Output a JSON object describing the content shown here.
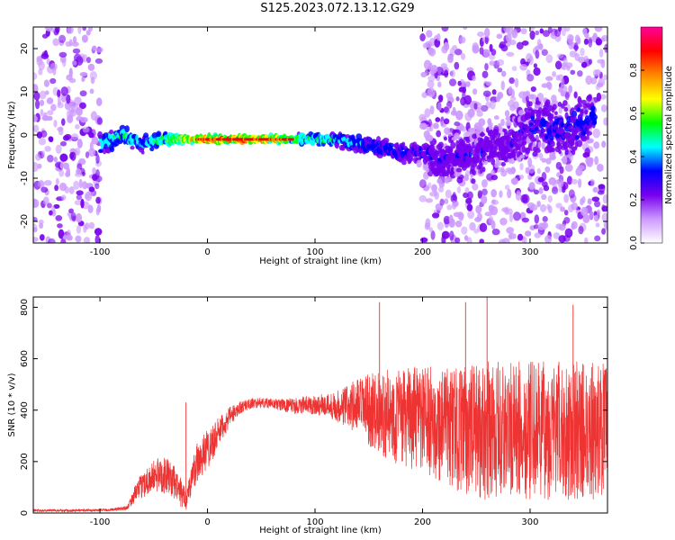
{
  "title": "S125.2023.072.13.12.G29",
  "chart_data": [
    {
      "type": "heatmap",
      "xlabel": "Height of straight line (km)",
      "ylabel": "Frequency (Hz)",
      "xlim": [
        -162,
        372
      ],
      "ylim": [
        -25,
        25
      ],
      "xticks": [
        -100,
        0,
        100,
        200,
        300
      ],
      "yticks": [
        -20,
        -10,
        0,
        10,
        20
      ],
      "colorbar": {
        "label": "Normalized spectral amplitude",
        "range": [
          0.0,
          1.0
        ],
        "ticks": [
          0.0,
          0.2,
          0.4,
          0.6,
          0.8
        ],
        "colors": [
          "#ffffff",
          "#cc99ff",
          "#7700ee",
          "#0000ff",
          "#00ffff",
          "#00ff00",
          "#ffff00",
          "#ff8800",
          "#ff0000",
          "#ff0099"
        ]
      },
      "ridge": {
        "description_values_only": true,
        "x": [
          -100,
          -80,
          -60,
          -40,
          -20,
          0,
          20,
          40,
          60,
          80,
          100,
          120,
          140,
          160,
          180,
          200,
          220,
          240,
          260,
          280,
          300,
          320,
          340,
          360
        ],
        "center_hz": [
          -2,
          0,
          -2,
          -1,
          -1,
          -1,
          -1,
          -1,
          -1,
          -1,
          -1,
          -1,
          -2,
          -3,
          -4,
          -4,
          -6,
          -5,
          -3,
          -2,
          3,
          1,
          2,
          4
        ],
        "spread_hz": [
          4,
          3,
          3,
          2,
          1,
          1,
          1,
          1,
          1,
          1,
          2,
          2,
          3,
          3,
          3,
          4,
          9,
          10,
          10,
          10,
          12,
          12,
          10,
          8
        ],
        "peak_amp": [
          0.5,
          0.6,
          0.5,
          0.7,
          0.8,
          0.95,
          0.95,
          0.95,
          0.9,
          0.7,
          0.6,
          0.55,
          0.5,
          0.45,
          0.45,
          0.4,
          0.35,
          0.35,
          0.35,
          0.35,
          0.35,
          0.4,
          0.4,
          0.45
        ]
      },
      "noise_regions": [
        {
          "x": [
            -162,
            -100
          ],
          "ylim": [
            -25,
            25
          ],
          "amp": 0.2
        },
        {
          "x": [
            200,
            372
          ],
          "ylim": [
            -25,
            25
          ],
          "amp": 0.2
        }
      ]
    },
    {
      "type": "line",
      "xlabel": "Height of straight line (km)",
      "ylabel": "SNR (10 * v/v)",
      "xlim": [
        -162,
        372
      ],
      "ylim": [
        0,
        840
      ],
      "xticks": [
        -100,
        0,
        100,
        200,
        300
      ],
      "yticks": [
        0,
        200,
        400,
        600,
        800
      ],
      "color": "#ee3333",
      "series": [
        {
          "x": [
            -162,
            -120,
            -90,
            -75,
            -65,
            -55,
            -45,
            -35,
            -25,
            -20,
            -10,
            0,
            10,
            20,
            30,
            40,
            50,
            60,
            70,
            80,
            90,
            100,
            110,
            120,
            130,
            140,
            150,
            160,
            170,
            180,
            190,
            200,
            210,
            220,
            230,
            240,
            250,
            260,
            270,
            280,
            290,
            300,
            310,
            320,
            330,
            340,
            350,
            360,
            372
          ],
          "center": [
            10,
            10,
            12,
            20,
            90,
            130,
            150,
            140,
            80,
            50,
            200,
            250,
            310,
            370,
            410,
            425,
            430,
            425,
            420,
            415,
            420,
            420,
            420,
            415,
            415,
            415,
            400,
            390,
            380,
            370,
            370,
            360,
            350,
            340,
            330,
            320,
            320,
            320,
            320,
            320,
            320,
            320,
            320,
            320,
            320,
            320,
            320,
            320,
            320
          ],
          "halfwidth": [
            5,
            5,
            5,
            8,
            40,
            60,
            70,
            70,
            60,
            40,
            90,
            80,
            60,
            40,
            25,
            20,
            20,
            20,
            25,
            30,
            35,
            40,
            45,
            60,
            90,
            110,
            140,
            160,
            180,
            190,
            200,
            210,
            220,
            230,
            240,
            250,
            260,
            270,
            270,
            270,
            270,
            270,
            270,
            270,
            270,
            270,
            270,
            270,
            270
          ],
          "max_spike": [
            null,
            null,
            null,
            null,
            null,
            null,
            null,
            null,
            null,
            430,
            null,
            null,
            null,
            null,
            null,
            null,
            null,
            null,
            null,
            null,
            null,
            null,
            null,
            null,
            null,
            null,
            null,
            820,
            null,
            null,
            null,
            null,
            null,
            null,
            null,
            820,
            null,
            840,
            null,
            null,
            null,
            null,
            null,
            null,
            null,
            810,
            null,
            null,
            null
          ]
        }
      ]
    }
  ]
}
